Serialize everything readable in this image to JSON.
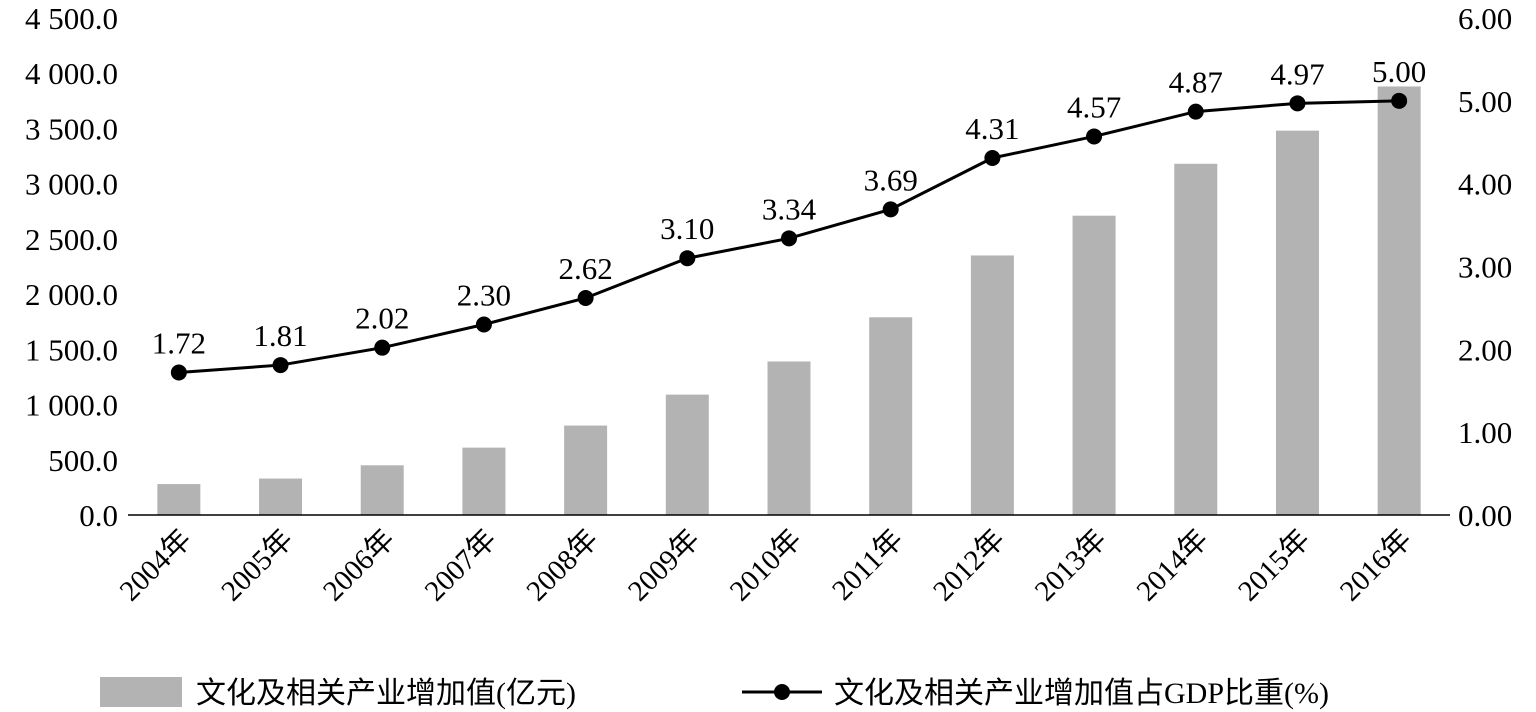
{
  "chart_data": {
    "type": "bar",
    "categories": [
      "2004年",
      "2005年",
      "2006年",
      "2007年",
      "2008年",
      "2009年",
      "2010年",
      "2011年",
      "2012年",
      "2013年",
      "2014年",
      "2015年",
      "2016年"
    ],
    "series": [
      {
        "name": "文化及相关产业增加值(亿元)",
        "type": "bar",
        "axis": "left",
        "color": "#b3b3b3",
        "values": [
          280,
          330,
          450,
          610,
          810,
          1090,
          1390,
          1790,
          2350,
          2710,
          3180,
          3480,
          3880
        ]
      },
      {
        "name": "文化及相关产业增加值占GDP比重(%)",
        "type": "line",
        "axis": "right",
        "color": "#000000",
        "values": [
          1.72,
          1.81,
          2.02,
          2.3,
          2.62,
          3.1,
          3.34,
          3.69,
          4.31,
          4.57,
          4.87,
          4.97,
          5.0
        ],
        "data_labels": [
          "1.72",
          "1.81",
          "2.02",
          "2.30",
          "2.62",
          "3.10",
          "3.34",
          "3.69",
          "4.31",
          "4.57",
          "4.87",
          "4.97",
          "5.00"
        ]
      }
    ],
    "y_left": {
      "ylim": [
        0,
        4500
      ],
      "ticks": [
        0,
        500,
        1000,
        1500,
        2000,
        2500,
        3000,
        3500,
        4000,
        4500
      ],
      "tick_labels": [
        "0.0",
        "500.0",
        "1 000.0",
        "1 500.0",
        "2 000.0",
        "2 500.0",
        "3 000.0",
        "3 500.0",
        "4 000.0",
        "4 500.0"
      ]
    },
    "y_right": {
      "ylim": [
        0,
        6
      ],
      "ticks": [
        0,
        1,
        2,
        3,
        4,
        5,
        6
      ],
      "tick_labels": [
        "0.00",
        "1.00",
        "2.00",
        "3.00",
        "4.00",
        "5.00",
        "6.00"
      ]
    },
    "grid": false,
    "legend": "bottom"
  }
}
